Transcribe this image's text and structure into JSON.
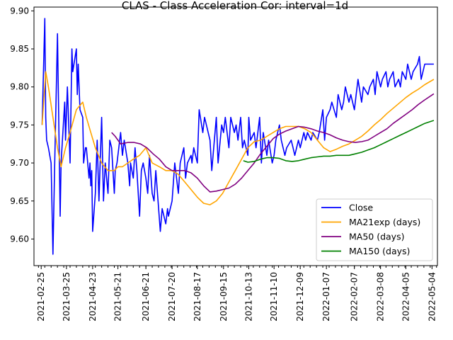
{
  "chart_data": {
    "type": "line",
    "title": "CLAS - Class Acceleration Cor: interval=1d",
    "xlabel": "",
    "ylabel": "",
    "x_range": [
      "2021-02-17",
      "2022-05-10"
    ],
    "ylim": [
      9.565,
      9.905
    ],
    "y_ticks": [
      9.6,
      9.65,
      9.7,
      9.75,
      9.8,
      9.85,
      9.9
    ],
    "x_ticks": [
      "2021-02-25",
      "2021-03-25",
      "2021-04-23",
      "2021-05-21",
      "2021-06-21",
      "2021-07-20",
      "2021-08-17",
      "2021-09-15",
      "2021-10-13",
      "2021-11-10",
      "2021-12-09",
      "2022-01-07",
      "2022-02-07",
      "2022-03-08",
      "2022-04-05",
      "2022-05-04"
    ],
    "grid": false,
    "legend_position": "lower-right",
    "series": [
      {
        "name": "Close",
        "color": "#0000ff",
        "x": [
          "2021-02-26",
          "2021-03-01",
          "2021-03-02",
          "2021-03-03",
          "2021-03-05",
          "2021-03-08",
          "2021-03-10",
          "2021-03-12",
          "2021-03-15",
          "2021-03-18",
          "2021-03-19",
          "2021-03-22",
          "2021-03-23",
          "2021-03-24",
          "2021-03-26",
          "2021-03-29",
          "2021-03-31",
          "2021-04-01",
          "2021-04-05",
          "2021-04-06",
          "2021-04-07",
          "2021-04-09",
          "2021-04-12",
          "2021-04-13",
          "2021-04-15",
          "2021-04-16",
          "2021-04-19",
          "2021-04-20",
          "2021-04-21",
          "2021-04-22",
          "2021-04-23",
          "2021-04-26",
          "2021-04-28",
          "2021-04-30",
          "2021-05-03",
          "2021-05-05",
          "2021-05-07",
          "2021-05-10",
          "2021-05-12",
          "2021-05-14",
          "2021-05-17",
          "2021-05-18",
          "2021-05-20",
          "2021-05-24",
          "2021-05-26",
          "2021-05-27",
          "2021-05-28",
          "2021-06-01",
          "2021-06-03",
          "2021-06-04",
          "2021-06-07",
          "2021-06-09",
          "2021-06-11",
          "2021-06-14",
          "2021-06-16",
          "2021-06-18",
          "2021-06-21",
          "2021-06-23",
          "2021-06-25",
          "2021-06-28",
          "2021-06-30",
          "2021-07-02",
          "2021-07-07",
          "2021-07-09",
          "2021-07-13",
          "2021-07-15",
          "2021-07-16",
          "2021-07-20",
          "2021-07-23",
          "2021-07-27",
          "2021-07-29",
          "2021-08-02",
          "2021-08-04",
          "2021-08-06",
          "2021-08-10",
          "2021-08-11",
          "2021-08-13",
          "2021-08-17",
          "2021-08-19",
          "2021-08-23",
          "2021-08-25",
          "2021-08-27",
          "2021-08-31",
          "2021-09-02",
          "2021-09-07",
          "2021-09-09",
          "2021-09-13",
          "2021-09-15",
          "2021-09-17",
          "2021-09-21",
          "2021-09-23",
          "2021-09-27",
          "2021-09-29",
          "2021-10-01",
          "2021-10-04",
          "2021-10-06",
          "2021-10-08",
          "2021-10-12",
          "2021-10-13",
          "2021-10-15",
          "2021-10-19",
          "2021-10-21",
          "2021-10-25",
          "2021-10-27",
          "2021-10-29",
          "2021-11-02",
          "2021-11-04",
          "2021-11-08",
          "2021-11-10",
          "2021-11-12",
          "2021-11-16",
          "2021-11-18",
          "2021-11-22",
          "2021-11-24",
          "2021-11-29",
          "2021-12-01",
          "2021-12-03",
          "2021-12-07",
          "2021-12-09",
          "2021-12-13",
          "2021-12-15",
          "2021-12-17",
          "2021-12-21",
          "2021-12-23",
          "2021-12-28",
          "2021-12-30",
          "2022-01-03",
          "2022-01-05",
          "2022-01-07",
          "2022-01-11",
          "2022-01-13",
          "2022-01-18",
          "2022-01-20",
          "2022-01-24",
          "2022-01-26",
          "2022-01-28",
          "2022-02-01",
          "2022-02-03",
          "2022-02-07",
          "2022-02-09",
          "2022-02-11",
          "2022-02-15",
          "2022-02-17",
          "2022-02-22",
          "2022-02-24",
          "2022-02-28",
          "2022-03-02",
          "2022-03-04",
          "2022-03-08",
          "2022-03-10",
          "2022-03-14",
          "2022-03-16",
          "2022-03-18",
          "2022-03-22",
          "2022-03-24",
          "2022-03-28",
          "2022-03-30",
          "2022-04-01",
          "2022-04-05",
          "2022-04-07",
          "2022-04-11",
          "2022-04-13",
          "2022-04-18",
          "2022-04-20",
          "2022-04-22",
          "2022-04-26",
          "2022-04-28",
          "2022-05-02",
          "2022-05-04",
          "2022-05-06"
        ],
        "values": [
          9.75,
          9.89,
          9.76,
          9.73,
          9.72,
          9.7,
          9.58,
          9.7,
          9.87,
          9.63,
          9.7,
          9.76,
          9.78,
          9.73,
          9.8,
          9.7,
          9.85,
          9.82,
          9.85,
          9.79,
          9.83,
          9.77,
          9.76,
          9.7,
          9.72,
          9.72,
          9.68,
          9.7,
          9.67,
          9.69,
          9.61,
          9.66,
          9.73,
          9.65,
          9.76,
          9.65,
          9.7,
          9.66,
          9.73,
          9.72,
          9.66,
          9.69,
          9.7,
          9.74,
          9.71,
          9.72,
          9.73,
          9.7,
          9.67,
          9.7,
          9.68,
          9.72,
          9.69,
          9.63,
          9.69,
          9.7,
          9.68,
          9.66,
          9.71,
          9.66,
          9.65,
          9.69,
          9.61,
          9.64,
          9.62,
          9.64,
          9.63,
          9.65,
          9.7,
          9.66,
          9.7,
          9.72,
          9.68,
          9.7,
          9.71,
          9.7,
          9.72,
          9.7,
          9.77,
          9.74,
          9.76,
          9.75,
          9.73,
          9.69,
          9.76,
          9.7,
          9.75,
          9.74,
          9.76,
          9.72,
          9.76,
          9.74,
          9.75,
          9.73,
          9.76,
          9.72,
          9.73,
          9.71,
          9.76,
          9.73,
          9.74,
          9.72,
          9.76,
          9.7,
          9.74,
          9.71,
          9.73,
          9.7,
          9.71,
          9.73,
          9.75,
          9.73,
          9.71,
          9.72,
          9.73,
          9.72,
          9.71,
          9.73,
          9.72,
          9.74,
          9.73,
          9.74,
          9.73,
          9.74,
          9.73,
          9.74,
          9.77,
          9.73,
          9.76,
          9.77,
          9.78,
          9.76,
          9.79,
          9.77,
          9.78,
          9.8,
          9.78,
          9.79,
          9.77,
          9.79,
          9.81,
          9.78,
          9.8,
          9.79,
          9.8,
          9.81,
          9.79,
          9.82,
          9.8,
          9.81,
          9.82,
          9.8,
          9.81,
          9.82,
          9.8,
          9.81,
          9.8,
          9.82,
          9.81,
          9.83,
          9.81,
          9.82,
          9.83,
          9.84,
          9.81,
          9.83,
          9.83,
          9.83,
          9.83,
          9.83
        ]
      },
      {
        "name": "MA21exp (days)",
        "color": "#ffa500",
        "x": [
          "2021-02-26",
          "2021-03-02",
          "2021-03-05",
          "2021-03-10",
          "2021-03-15",
          "2021-03-19",
          "2021-03-24",
          "2021-03-29",
          "2021-04-05",
          "2021-04-12",
          "2021-04-16",
          "2021-04-21",
          "2021-04-26",
          "2021-05-03",
          "2021-05-10",
          "2021-05-17",
          "2021-05-21",
          "2021-05-26",
          "2021-06-01",
          "2021-06-07",
          "2021-06-14",
          "2021-06-21",
          "2021-06-28",
          "2021-07-06",
          "2021-07-13",
          "2021-07-20",
          "2021-07-27",
          "2021-08-03",
          "2021-08-10",
          "2021-08-17",
          "2021-08-24",
          "2021-08-31",
          "2021-09-07",
          "2021-09-14",
          "2021-09-21",
          "2021-09-28",
          "2021-10-05",
          "2021-10-12",
          "2021-10-19",
          "2021-10-26",
          "2021-11-02",
          "2021-11-09",
          "2021-11-16",
          "2021-11-23",
          "2021-11-30",
          "2021-12-07",
          "2021-12-14",
          "2021-12-21",
          "2021-12-28",
          "2022-01-04",
          "2022-01-11",
          "2022-01-18",
          "2022-01-25",
          "2022-02-01",
          "2022-02-08",
          "2022-02-15",
          "2022-02-22",
          "2022-03-01",
          "2022-03-08",
          "2022-03-15",
          "2022-03-22",
          "2022-03-29",
          "2022-04-05",
          "2022-04-12",
          "2022-04-19",
          "2022-04-26",
          "2022-05-06"
        ],
        "values": [
          9.75,
          9.82,
          9.8,
          9.76,
          9.72,
          9.695,
          9.72,
          9.74,
          9.77,
          9.78,
          9.76,
          9.74,
          9.72,
          9.7,
          9.69,
          9.69,
          9.695,
          9.695,
          9.7,
          9.705,
          9.71,
          9.72,
          9.7,
          9.695,
          9.69,
          9.69,
          9.685,
          9.675,
          9.665,
          9.655,
          9.647,
          9.645,
          9.65,
          9.66,
          9.675,
          9.69,
          9.705,
          9.72,
          9.728,
          9.73,
          9.735,
          9.74,
          9.745,
          9.748,
          9.748,
          9.748,
          9.745,
          9.74,
          9.73,
          9.72,
          9.715,
          9.718,
          9.722,
          9.725,
          9.73,
          9.735,
          9.742,
          9.75,
          9.757,
          9.765,
          9.772,
          9.779,
          9.786,
          9.792,
          9.797,
          9.803,
          9.81
        ]
      },
      {
        "name": "MA50 (days)",
        "color": "#800080",
        "x": [
          "2021-05-14",
          "2021-05-18",
          "2021-05-24",
          "2021-06-01",
          "2021-06-08",
          "2021-06-15",
          "2021-06-22",
          "2021-06-29",
          "2021-07-06",
          "2021-07-13",
          "2021-07-20",
          "2021-07-27",
          "2021-08-03",
          "2021-08-10",
          "2021-08-17",
          "2021-08-24",
          "2021-08-31",
          "2021-09-07",
          "2021-09-14",
          "2021-09-21",
          "2021-09-28",
          "2021-10-05",
          "2021-10-12",
          "2021-10-19",
          "2021-10-26",
          "2021-11-02",
          "2021-11-09",
          "2021-11-16",
          "2021-11-23",
          "2021-11-30",
          "2021-12-07",
          "2021-12-14",
          "2021-12-21",
          "2021-12-28",
          "2022-01-04",
          "2022-01-11",
          "2022-01-18",
          "2022-01-25",
          "2022-02-01",
          "2022-02-08",
          "2022-02-15",
          "2022-02-22",
          "2022-03-01",
          "2022-03-08",
          "2022-03-15",
          "2022-03-22",
          "2022-03-29",
          "2022-04-05",
          "2022-04-12",
          "2022-04-19",
          "2022-04-26",
          "2022-05-06"
        ],
        "values": [
          9.74,
          9.735,
          9.725,
          9.727,
          9.727,
          9.725,
          9.72,
          9.712,
          9.705,
          9.695,
          9.69,
          9.69,
          9.69,
          9.687,
          9.68,
          9.67,
          9.662,
          9.663,
          9.665,
          9.667,
          9.672,
          9.68,
          9.69,
          9.7,
          9.712,
          9.722,
          9.732,
          9.738,
          9.742,
          9.745,
          9.748,
          9.747,
          9.745,
          9.742,
          9.74,
          9.737,
          9.733,
          9.73,
          9.728,
          9.727,
          9.728,
          9.73,
          9.735,
          9.74,
          9.745,
          9.752,
          9.758,
          9.764,
          9.77,
          9.777,
          9.783,
          9.791
        ]
      },
      {
        "name": "MA150 (days)",
        "color": "#008000",
        "x": [
          "2021-10-07",
          "2021-10-12",
          "2021-10-19",
          "2021-10-26",
          "2021-11-02",
          "2021-11-09",
          "2021-11-16",
          "2021-11-23",
          "2021-11-30",
          "2021-12-07",
          "2021-12-14",
          "2021-12-21",
          "2021-12-28",
          "2022-01-04",
          "2022-01-11",
          "2022-01-18",
          "2022-01-25",
          "2022-02-01",
          "2022-02-08",
          "2022-02-15",
          "2022-02-22",
          "2022-03-01",
          "2022-03-08",
          "2022-03-15",
          "2022-03-22",
          "2022-03-29",
          "2022-04-05",
          "2022-04-12",
          "2022-04-19",
          "2022-04-26",
          "2022-05-06"
        ],
        "values": [
          9.703,
          9.701,
          9.702,
          9.705,
          9.707,
          9.707,
          9.706,
          9.703,
          9.702,
          9.703,
          9.705,
          9.707,
          9.708,
          9.709,
          9.709,
          9.71,
          9.71,
          9.71,
          9.712,
          9.714,
          9.717,
          9.72,
          9.724,
          9.728,
          9.732,
          9.736,
          9.74,
          9.744,
          9.748,
          9.752,
          9.756
        ]
      }
    ]
  }
}
